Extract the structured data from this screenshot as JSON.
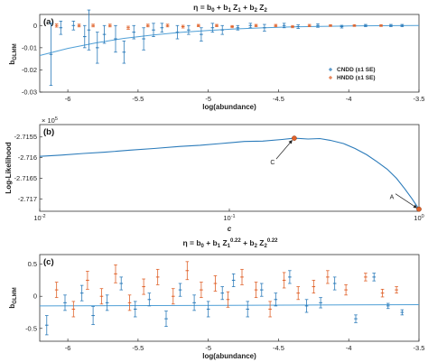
{
  "colors": {
    "cndd": "#2b7bba",
    "hndd": "#e0622a",
    "fit": "#4f9fd6",
    "axis": "#333333"
  },
  "chart_data": [
    {
      "panel": "(a)",
      "type": "scatter",
      "title": "η = b₀ + b₁ Z₁ + b₂ Z₂",
      "title_parts": {
        "eta": "η = b",
        "b0": "0",
        "p1": " + b",
        "b1": "1",
        "z": " Z",
        "z1": "1",
        "p2": " + b",
        "b2": "2",
        "z2": " Z",
        "z2s": "2"
      },
      "xlabel": "log(abundance)",
      "ylabel": "b",
      "ylabel_sub": "GLMM",
      "xlim": [
        -6.2,
        -3.5
      ],
      "ylim": [
        -0.03,
        0.005
      ],
      "xticks": [
        -6,
        -5.5,
        -5,
        -4.5,
        -4,
        -3.5
      ],
      "xtick_labels": [
        "-6",
        "-5.5",
        "-5",
        "-4.5",
        "-4",
        "-3.5"
      ],
      "yticks": [
        0,
        -0.01,
        -0.02,
        -0.03
      ],
      "ytick_labels": [
        "0",
        "-0.01",
        "-0.02",
        "-0.03"
      ],
      "legend": {
        "position": "right",
        "entries": [
          "CNDD (±1 SE)",
          "HNDD (±1 SE)"
        ]
      },
      "fit": {
        "x": [
          -6.2,
          -6.0,
          -5.8,
          -5.6,
          -5.4,
          -5.2,
          -5.0,
          -4.8,
          -4.6,
          -4.4,
          -4.2,
          -4.0,
          -3.8,
          -3.5
        ],
        "y": [
          -0.0135,
          -0.0103,
          -0.0078,
          -0.0058,
          -0.0043,
          -0.0031,
          -0.0022,
          -0.0015,
          -0.001,
          -0.0006,
          -0.0004,
          -0.0002,
          -0.0001,
          0.0
        ]
      },
      "series": [
        {
          "name": "CNDD (±1 SE)",
          "x": [
            -6.12,
            -6.05,
            -5.96,
            -5.88,
            -5.85,
            -5.79,
            -5.74,
            -5.66,
            -5.6,
            -5.53,
            -5.46,
            -5.39,
            -5.33,
            -5.22,
            -5.14,
            -5.05,
            -4.97,
            -4.9,
            -4.79,
            -4.7,
            -4.6,
            -4.46,
            -4.36,
            -4.22,
            -4.05,
            -3.88,
            -3.7,
            -3.62
          ],
          "y": [
            -0.013,
            -0.001,
            0.0,
            -0.005,
            -0.002,
            -0.01,
            -0.004,
            -0.006,
            -0.012,
            -0.003,
            -0.006,
            -0.002,
            -0.001,
            -0.003,
            -0.002,
            -0.004,
            -0.001,
            -0.002,
            -0.001,
            0.0,
            -0.001,
            0.0,
            -0.0005,
            0.0,
            -0.0005,
            0.0,
            0.0,
            0.0
          ],
          "err": [
            0.014,
            0.003,
            0.002,
            0.005,
            0.009,
            0.007,
            0.004,
            0.006,
            0.005,
            0.003,
            0.005,
            0.003,
            0.002,
            0.003,
            0.002,
            0.003,
            0.002,
            0.002,
            0.001,
            0.001,
            0.0015,
            0.001,
            0.0008,
            0.0008,
            0.0006,
            0.0005,
            0.0005,
            0.0005
          ]
        },
        {
          "name": "HNDD (±1 SE)",
          "x": [
            -6.08,
            -5.92,
            -5.82,
            -5.7,
            -5.57,
            -5.43,
            -5.29,
            -5.18,
            -5.07,
            -4.94,
            -4.83,
            -4.66,
            -4.52,
            -4.4,
            -4.28,
            -4.13,
            -3.96,
            -3.77
          ],
          "y": [
            0.0,
            0.0,
            0.0,
            0.0,
            -0.001,
            0.0,
            0.0,
            -0.0005,
            0.0,
            0.0,
            -0.0005,
            0.0,
            0.0,
            -0.0005,
            0.0,
            0.0,
            0.0,
            0.0
          ],
          "err": [
            0.0007,
            0.0006,
            0.0006,
            0.0006,
            0.0007,
            0.0006,
            0.0006,
            0.0006,
            0.0005,
            0.0005,
            0.0005,
            0.0005,
            0.0005,
            0.0005,
            0.0005,
            0.0004,
            0.0004,
            0.0004
          ]
        }
      ]
    },
    {
      "panel": "(b)",
      "type": "line",
      "xscale": "log",
      "xlabel": "c",
      "ylabel": "Log-Likelihood",
      "exponent": "× 10⁵",
      "exponent_parts": {
        "mult": "× 10",
        "pow": "5"
      },
      "xlim": [
        0.01,
        1
      ],
      "ylim": [
        -2.7173,
        -2.7152
      ],
      "xticks": [
        0.01,
        0.1,
        1
      ],
      "xtick_labels": [
        "10⁻²",
        "10⁻¹",
        "10⁰"
      ],
      "xtick_parts": [
        {
          "base": "10",
          "pow": "-2"
        },
        {
          "base": "10",
          "pow": "-1"
        },
        {
          "base": "10",
          "pow": "0"
        }
      ],
      "yticks": [
        -2.7155,
        -2.716,
        -2.7165,
        -2.717
      ],
      "ytick_labels": [
        "-2.7155",
        "-2.716",
        "-2.7165",
        "-2.717"
      ],
      "series": [
        {
          "name": "",
          "x": [
            0.01,
            0.013,
            0.017,
            0.022,
            0.03,
            0.04,
            0.055,
            0.07,
            0.09,
            0.12,
            0.15,
            0.19,
            0.22,
            0.26,
            0.3,
            0.34,
            0.4,
            0.46,
            0.53,
            0.6,
            0.68,
            0.76,
            0.84,
            0.92,
            1.0
          ],
          "y": [
            -2.71597,
            -2.71594,
            -2.7159,
            -2.71587,
            -2.71582,
            -2.71578,
            -2.71573,
            -2.7157,
            -2.71566,
            -2.71561,
            -2.7156,
            -2.71556,
            -2.71553,
            -2.71555,
            -2.71554,
            -2.71558,
            -2.71566,
            -2.71578,
            -2.71593,
            -2.7161,
            -2.71628,
            -2.7165,
            -2.71675,
            -2.717,
            -2.71725
          ]
        }
      ],
      "markers": [
        {
          "label": "C",
          "x": 0.22,
          "y": -2.71553
        },
        {
          "label": "A",
          "x": 1.0,
          "y": -2.71725
        }
      ]
    },
    {
      "panel": "(c)",
      "type": "scatter",
      "title": "η = b₀ + b₁ Z₁^0.22 + b₂ Z₂^0.22",
      "title_parts": {
        "eta": "η = b",
        "b0": "0",
        "p1": " + b",
        "b1": "1",
        "z": " Z",
        "z1": "1",
        "e1": "0.22",
        "p2": " + b",
        "b2": "2",
        "z2": " Z",
        "z2s": "2",
        "e2": "0.22"
      },
      "xlabel": "log(abundance)",
      "ylabel": "b",
      "ylabel_sub": "GLMM",
      "xlim": [
        -6.2,
        -3.5
      ],
      "ylim": [
        -0.7,
        0.65
      ],
      "xticks": [
        -6,
        -5.5,
        -5,
        -4.5,
        -4,
        -3.5
      ],
      "xtick_labels": [
        "-6",
        "-5.5",
        "-5",
        "-4.5",
        "-4",
        "-3.5"
      ],
      "yticks": [
        0.5,
        0,
        -0.5
      ],
      "ytick_labels": [
        "0.5",
        "0",
        "-0.5"
      ],
      "fit": {
        "x": [
          -6.2,
          -3.5
        ],
        "y": [
          -0.15,
          -0.13
        ]
      },
      "series": [
        {
          "name": "CNDD (±1 SE)",
          "x": [
            -6.15,
            -6.02,
            -5.9,
            -5.82,
            -5.72,
            -5.62,
            -5.52,
            -5.42,
            -5.3,
            -5.2,
            -5.1,
            -5.0,
            -4.9,
            -4.82,
            -4.72,
            -4.62,
            -4.52,
            -4.42,
            -4.3,
            -4.2,
            -4.1,
            -3.95,
            -3.82,
            -3.72,
            -3.62
          ],
          "y": [
            -0.45,
            -0.1,
            0.05,
            -0.3,
            -0.1,
            0.2,
            -0.2,
            -0.05,
            -0.35,
            0.1,
            -0.1,
            -0.2,
            0.05,
            0.25,
            -0.2,
            0.1,
            -0.05,
            0.3,
            -0.15,
            -0.1,
            0.2,
            -0.35,
            0.3,
            -0.15,
            -0.25
          ],
          "err": [
            0.15,
            0.12,
            0.12,
            0.14,
            0.12,
            0.1,
            0.12,
            0.1,
            0.12,
            0.1,
            0.12,
            0.12,
            0.1,
            0.1,
            0.12,
            0.1,
            0.1,
            0.1,
            0.1,
            0.08,
            0.1,
            0.06,
            0.06,
            0.04,
            0.04
          ]
        },
        {
          "name": "HNDD (±1 SE)",
          "x": [
            -6.08,
            -5.96,
            -5.86,
            -5.76,
            -5.66,
            -5.56,
            -5.46,
            -5.36,
            -5.25,
            -5.15,
            -5.05,
            -4.95,
            -4.86,
            -4.76,
            -4.66,
            -4.56,
            -4.46,
            -4.36,
            -4.25,
            -4.15,
            -4.02,
            -3.88,
            -3.76,
            -3.66
          ],
          "y": [
            0.1,
            -0.2,
            0.25,
            0.0,
            0.35,
            -0.1,
            0.15,
            0.3,
            0.0,
            0.4,
            0.1,
            0.2,
            -0.05,
            0.3,
            0.1,
            -0.2,
            0.25,
            0.05,
            0.15,
            0.3,
            0.1,
            0.3,
            0.05,
            0.1
          ],
          "err": [
            0.12,
            0.12,
            0.14,
            0.12,
            0.14,
            0.12,
            0.12,
            0.12,
            0.12,
            0.14,
            0.12,
            0.12,
            0.12,
            0.12,
            0.12,
            0.12,
            0.12,
            0.1,
            0.1,
            0.1,
            0.08,
            0.06,
            0.06,
            0.05
          ]
        }
      ]
    }
  ]
}
